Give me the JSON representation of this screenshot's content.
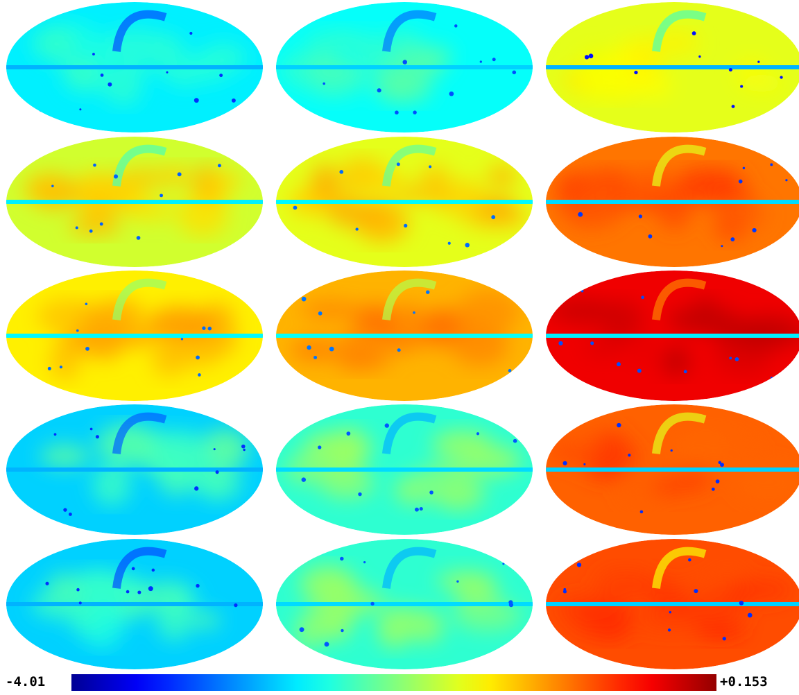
{
  "panels": [
    {
      "row": 1,
      "col": 1,
      "base": 0.36,
      "disk": 0.42,
      "plane": 0.3,
      "loop": 0.2,
      "speckle": 0.03
    },
    {
      "row": 1,
      "col": 2,
      "base": 0.38,
      "disk": 0.44,
      "plane": 0.33,
      "loop": 0.24,
      "speckle": 0.03
    },
    {
      "row": 1,
      "col": 3,
      "base": 0.6,
      "disk": 0.63,
      "plane": 0.3,
      "loop": 0.45,
      "speckle": 0.06
    },
    {
      "row": 2,
      "col": 1,
      "base": 0.58,
      "disk": 0.68,
      "plane": 0.36,
      "loop": 0.45,
      "speckle": 0.04
    },
    {
      "row": 2,
      "col": 2,
      "base": 0.6,
      "disk": 0.69,
      "plane": 0.37,
      "loop": 0.47,
      "speckle": 0.04
    },
    {
      "row": 2,
      "col": 3,
      "base": 0.76,
      "disk": 0.8,
      "plane": 0.34,
      "loop": 0.6,
      "speckle": 0.06
    },
    {
      "row": 3,
      "col": 1,
      "base": 0.64,
      "disk": 0.71,
      "plane": 0.37,
      "loop": 0.52,
      "speckle": 0.04
    },
    {
      "row": 3,
      "col": 2,
      "base": 0.7,
      "disk": 0.75,
      "plane": 0.38,
      "loop": 0.55,
      "speckle": 0.04
    },
    {
      "row": 3,
      "col": 3,
      "base": 0.89,
      "disk": 0.92,
      "plane": 0.36,
      "loop": 0.75,
      "speckle": 0.06
    },
    {
      "row": 4,
      "col": 1,
      "base": 0.33,
      "disk": 0.45,
      "plane": 0.3,
      "loop": 0.22,
      "speckle": 0.03
    },
    {
      "row": 4,
      "col": 2,
      "base": 0.42,
      "disk": 0.52,
      "plane": 0.34,
      "loop": 0.3,
      "speckle": 0.03
    },
    {
      "row": 4,
      "col": 3,
      "base": 0.78,
      "disk": 0.8,
      "plane": 0.33,
      "loop": 0.6,
      "speckle": 0.06
    },
    {
      "row": 5,
      "col": 1,
      "base": 0.33,
      "disk": 0.43,
      "plane": 0.3,
      "loop": 0.2,
      "speckle": 0.03
    },
    {
      "row": 5,
      "col": 2,
      "base": 0.42,
      "disk": 0.52,
      "plane": 0.34,
      "loop": 0.3,
      "speckle": 0.03
    },
    {
      "row": 5,
      "col": 3,
      "base": 0.8,
      "disk": 0.82,
      "plane": 0.33,
      "loop": 0.62,
      "speckle": 0.06
    }
  ],
  "colormap": "jet",
  "colorbar": {
    "min_label": "-4.01",
    "max_label": "+0.153"
  }
}
